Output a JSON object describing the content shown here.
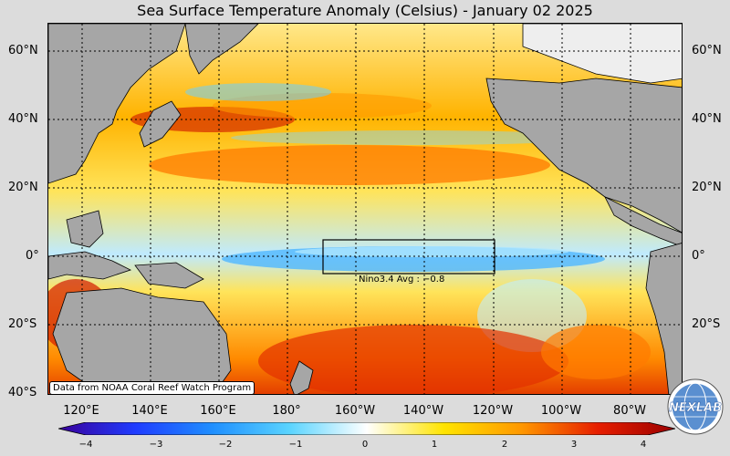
{
  "title": "Sea Surface Temperature Anomaly (Celsius) - January 02 2025",
  "lat_labels": [
    "60°N",
    "40°N",
    "20°N",
    "0°",
    "20°S",
    "40°S"
  ],
  "lon_labels": [
    "120°E",
    "140°E",
    "160°E",
    "180°",
    "160°W",
    "140°W",
    "120°W",
    "100°W",
    "80°W"
  ],
  "nino_label": "Nino3.4 Avg : −0.8",
  "credit": "Data from NOAA Coral Reef Watch Program",
  "logo_text": "NEXLAB",
  "colorbar": {
    "ticks": [
      "−4",
      "−3",
      "−2",
      "−1",
      "0",
      "1",
      "2",
      "3",
      "4"
    ],
    "stops": [
      "#3a009a",
      "#1f3cff",
      "#1f8fff",
      "#5ad4ff",
      "#ffffff",
      "#ffe400",
      "#ff9800",
      "#e61e00",
      "#9a0000"
    ]
  },
  "colors": {
    "land": "#a6a6a6",
    "ocean_warm": "#ffd21f",
    "ocean_hot": "#e63a00",
    "ocean_cool": "#79d8ff"
  }
}
